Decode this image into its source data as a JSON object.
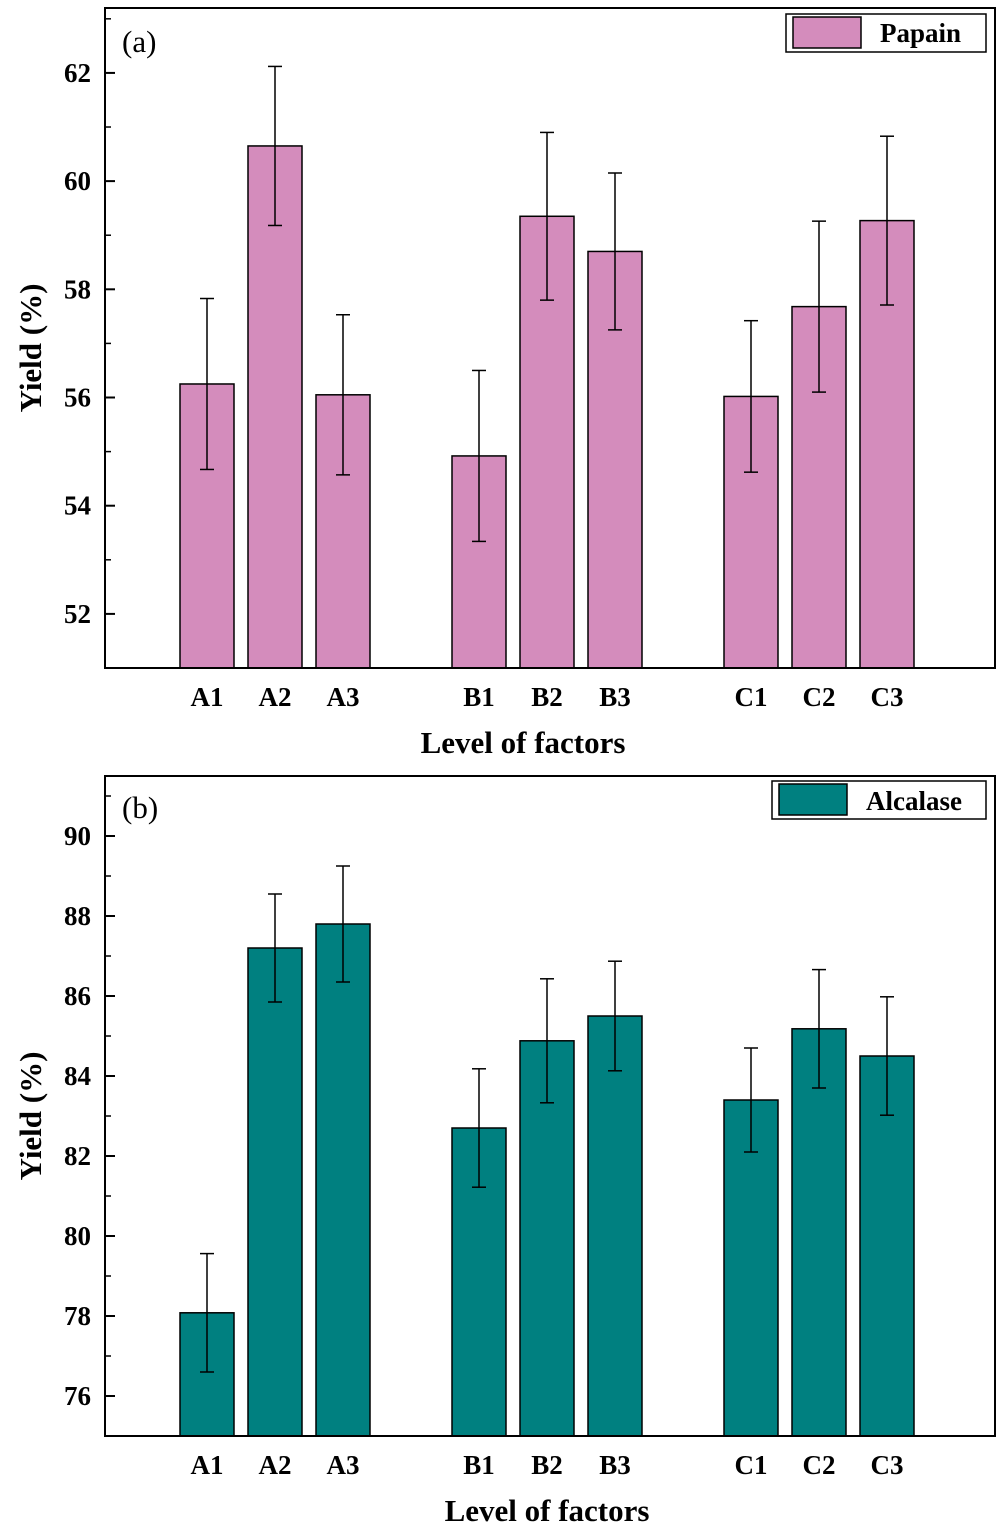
{
  "chart_data": [
    {
      "type": "bar",
      "panel_label": "(a)",
      "xlabel": "Level of factors",
      "ylabel": "Yield (%)",
      "ylim": [
        51,
        63.2
      ],
      "yticks": [
        52,
        54,
        56,
        58,
        60,
        62
      ],
      "grid": false,
      "legend_position": "top-right",
      "groups": [
        [
          "A1",
          "A2",
          "A3"
        ],
        [
          "B1",
          "B2",
          "B3"
        ],
        [
          "C1",
          "C2",
          "C3"
        ]
      ],
      "categories": [
        "A1",
        "A2",
        "A3",
        "B1",
        "B2",
        "B3",
        "C1",
        "C2",
        "C3"
      ],
      "series": [
        {
          "name": "Papain",
          "color": "#d48cbc",
          "values": [
            56.25,
            60.65,
            56.05,
            54.92,
            59.35,
            58.7,
            56.02,
            57.68,
            59.27
          ],
          "errors": [
            1.58,
            1.47,
            1.48,
            1.58,
            1.55,
            1.45,
            1.4,
            1.58,
            1.56
          ]
        }
      ]
    },
    {
      "type": "bar",
      "panel_label": "(b)",
      "xlabel": "Level of factors",
      "ylabel": "Yield (%)",
      "ylim": [
        75,
        91.5
      ],
      "yticks": [
        76,
        78,
        80,
        82,
        84,
        86,
        88,
        90
      ],
      "grid": false,
      "legend_position": "top-right",
      "groups": [
        [
          "A1",
          "A2",
          "A3"
        ],
        [
          "B1",
          "B2",
          "B3"
        ],
        [
          "C1",
          "C2",
          "C3"
        ]
      ],
      "categories": [
        "A1",
        "A2",
        "A3",
        "B1",
        "B2",
        "B3",
        "C1",
        "C2",
        "C3"
      ],
      "series": [
        {
          "name": "Alcalase",
          "color": "#008080",
          "values": [
            78.08,
            87.2,
            87.8,
            82.7,
            84.88,
            85.5,
            83.4,
            85.18,
            84.5
          ],
          "errors": [
            1.48,
            1.35,
            1.45,
            1.48,
            1.55,
            1.37,
            1.3,
            1.48,
            1.48
          ]
        }
      ]
    }
  ]
}
